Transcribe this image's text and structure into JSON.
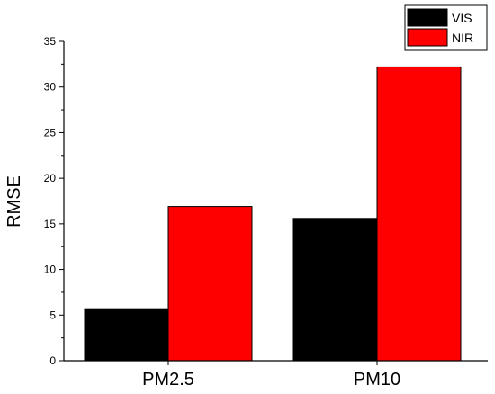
{
  "chart_data": {
    "type": "bar",
    "title": "",
    "xlabel": "",
    "ylabel": "RMSE",
    "categories": [
      "PM2.5",
      "PM10"
    ],
    "series": [
      {
        "name": "VIS",
        "color": "#000000",
        "values": [
          5.7,
          15.6
        ]
      },
      {
        "name": "NIR",
        "color": "#ff0000",
        "values": [
          16.9,
          32.2
        ]
      }
    ],
    "ylim": [
      0,
      35
    ],
    "yticks": [
      "0",
      "5",
      "10",
      "15",
      "20",
      "25",
      "30",
      "35"
    ],
    "ytick_values": [
      0,
      5,
      10,
      15,
      20,
      25,
      30,
      35
    ],
    "legend_position": "top-right",
    "grid": false
  }
}
